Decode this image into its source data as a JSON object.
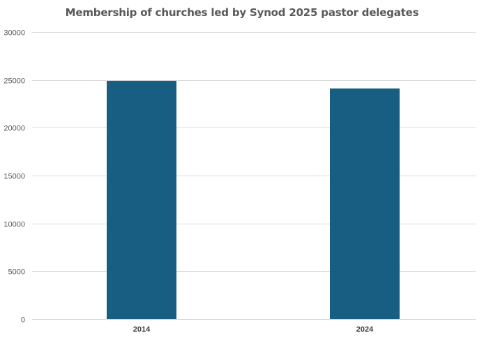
{
  "chart_data": {
    "type": "bar",
    "title": "Membership of churches led by Synod 2025 pastor delegates",
    "xlabel": "",
    "ylabel": "",
    "categories": [
      "2014",
      "2024"
    ],
    "values": [
      24900,
      24100
    ],
    "ylim": [
      0,
      30000
    ],
    "yticks": [
      "0",
      "5000",
      "10000",
      "15000",
      "20000",
      "25000",
      "30000"
    ],
    "grid": true,
    "legend": "none",
    "colors": {
      "bar": "#175E82",
      "grid": "#D9D9D9",
      "text": "#595959"
    }
  }
}
